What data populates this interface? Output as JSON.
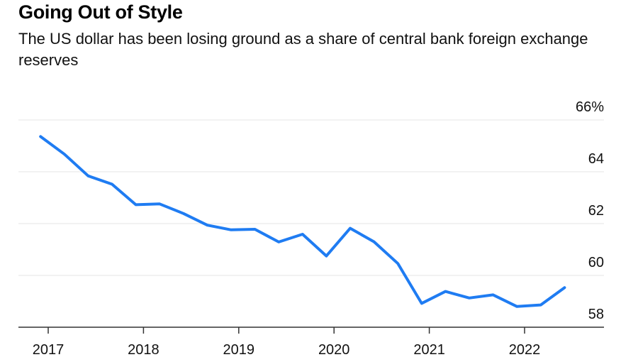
{
  "header": {
    "title": "Going Out of Style",
    "subtitle": "The US dollar has been losing ground as a share of central bank foreign exchange reserves"
  },
  "chart_data": {
    "type": "line",
    "title": "Going Out of Style",
    "subtitle": "The US dollar has been losing ground as a share of central bank foreign exchange reserves",
    "xlabel": "",
    "ylabel": "",
    "x": [
      "2016-Q4",
      "2017-Q1",
      "2017-Q2",
      "2017-Q3",
      "2017-Q4",
      "2018-Q1",
      "2018-Q2",
      "2018-Q3",
      "2018-Q4",
      "2019-Q1",
      "2019-Q2",
      "2019-Q3",
      "2019-Q4",
      "2020-Q1",
      "2020-Q2",
      "2020-Q3",
      "2020-Q4",
      "2021-Q1",
      "2021-Q2",
      "2021-Q3",
      "2021-Q4",
      "2022-Q1",
      "2022-Q2"
    ],
    "x_numeric": [
      2016.92,
      2017.17,
      2017.42,
      2017.67,
      2017.92,
      2018.17,
      2018.42,
      2018.67,
      2018.92,
      2019.17,
      2019.42,
      2019.67,
      2019.92,
      2020.17,
      2020.42,
      2020.67,
      2020.92,
      2021.17,
      2021.42,
      2021.67,
      2021.92,
      2022.17,
      2022.42
    ],
    "series": [
      {
        "name": "US dollar share of FX reserves (%)",
        "color": "#1f7cf2",
        "values": [
          65.36,
          64.68,
          63.84,
          63.52,
          62.73,
          62.76,
          62.39,
          61.94,
          61.76,
          61.78,
          61.29,
          61.59,
          60.75,
          61.82,
          61.3,
          60.46,
          58.92,
          59.38,
          59.13,
          59.25,
          58.8,
          58.86,
          59.53
        ]
      }
    ],
    "xlim": [
      2016.82,
      2023.0
    ],
    "ylim": [
      58,
      66
    ],
    "yticks": [
      58,
      60,
      62,
      64,
      66
    ],
    "ytick_labels": [
      "58",
      "60",
      "62",
      "64",
      "66%"
    ],
    "xticks": [
      2017,
      2018,
      2019,
      2020,
      2021,
      2022
    ],
    "xtick_labels": [
      "2017",
      "2018",
      "2019",
      "2020",
      "2021",
      "2022"
    ],
    "y_axis_position": "right",
    "grid": true,
    "gridline_color": "#eeeeee",
    "axis_color": "#333333",
    "legend": "none"
  }
}
